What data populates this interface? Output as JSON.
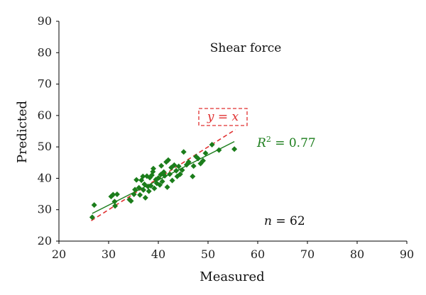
{
  "chart_data": {
    "type": "scatter",
    "title": "Shear force",
    "xlabel": "Measured",
    "ylabel": "Predicted",
    "xlim": [
      20,
      90
    ],
    "ylim": [
      20,
      90
    ],
    "xticks": [
      20,
      30,
      40,
      50,
      60,
      70,
      80,
      90
    ],
    "yticks": [
      20,
      30,
      40,
      50,
      60,
      70,
      80,
      90
    ],
    "grid": false,
    "colors": {
      "points": "#1b7d1b",
      "fit_line": "#1b7d1b",
      "identity_line": "#e03030"
    },
    "series": [
      {
        "points": [
          [
            26.7,
            27.6
          ],
          [
            27.1,
            31.5
          ],
          [
            30.5,
            34.2
          ],
          [
            30.9,
            34.8
          ],
          [
            31.2,
            32.6
          ],
          [
            31.3,
            31.2
          ],
          [
            31.7,
            34.9
          ],
          [
            34.2,
            33.2
          ],
          [
            34.5,
            32.8
          ],
          [
            35.1,
            34.9
          ],
          [
            35.3,
            36.4
          ],
          [
            35.6,
            39.5
          ],
          [
            36.1,
            37.0
          ],
          [
            36.3,
            34.7
          ],
          [
            36.6,
            39.4
          ],
          [
            36.9,
            40.6
          ],
          [
            37.0,
            36.3
          ],
          [
            37.2,
            38.1
          ],
          [
            37.4,
            33.8
          ],
          [
            37.7,
            40.7
          ],
          [
            37.9,
            37.4
          ],
          [
            38.1,
            35.9
          ],
          [
            38.3,
            40.2
          ],
          [
            38.5,
            37.6
          ],
          [
            38.7,
            41.0
          ],
          [
            38.9,
            42.1
          ],
          [
            39.2,
            36.8
          ],
          [
            39.5,
            39.6
          ],
          [
            39.7,
            38.4
          ],
          [
            40.0,
            40.1
          ],
          [
            40.3,
            37.9
          ],
          [
            40.5,
            41.2
          ],
          [
            40.6,
            44.0
          ],
          [
            40.8,
            39.0
          ],
          [
            41.1,
            42.0
          ],
          [
            41.3,
            40.8
          ],
          [
            41.6,
            45.2
          ],
          [
            41.8,
            37.2
          ],
          [
            42.0,
            45.8
          ],
          [
            42.3,
            41.3
          ],
          [
            42.6,
            43.4
          ],
          [
            42.8,
            39.3
          ],
          [
            43.2,
            44.2
          ],
          [
            43.6,
            42.4
          ],
          [
            43.8,
            40.6
          ],
          [
            44.1,
            43.8
          ],
          [
            44.4,
            41.3
          ],
          [
            44.8,
            42.6
          ],
          [
            45.1,
            48.4
          ],
          [
            45.7,
            44.3
          ],
          [
            46.1,
            45.2
          ],
          [
            46.9,
            40.6
          ],
          [
            47.1,
            43.9
          ],
          [
            47.6,
            46.9
          ],
          [
            48.0,
            46.3
          ],
          [
            48.5,
            44.7
          ],
          [
            49.0,
            45.6
          ],
          [
            49.5,
            48.0
          ],
          [
            50.8,
            50.7
          ],
          [
            52.2,
            49.0
          ],
          [
            55.3,
            49.3
          ],
          [
            39.0,
            43.1
          ]
        ]
      }
    ],
    "fit_line": {
      "x": [
        26.7,
        55.3
      ],
      "y": [
        28.8,
        51.7
      ]
    },
    "identity_line": {
      "x": [
        26.5,
        55.5
      ],
      "y": [
        26.5,
        55.5
      ],
      "label": "y = x"
    },
    "annotations": {
      "r2_label": "R",
      "r2_sup": "2",
      "r2_value": " = 0.77",
      "n_label": "n",
      "n_value": " = 62"
    }
  }
}
